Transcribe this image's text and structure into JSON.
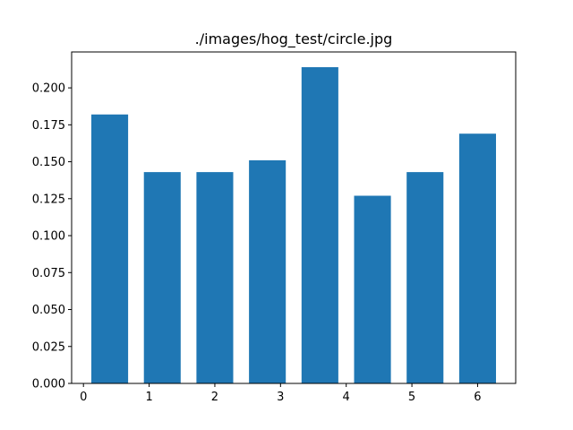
{
  "chart_data": {
    "type": "bar",
    "title": "./images/hog_test/circle.jpg",
    "xlabel": "",
    "ylabel": "",
    "x": [
      0.4,
      1.2,
      2.0,
      2.8,
      3.6,
      4.4,
      5.2,
      6.0
    ],
    "values": [
      0.182,
      0.143,
      0.143,
      0.151,
      0.214,
      0.127,
      0.143,
      0.169
    ],
    "bar_width": 0.56,
    "xlim": [
      -0.18,
      6.58
    ],
    "ylim": [
      0,
      0.2243
    ],
    "xticks": [
      0,
      1,
      2,
      3,
      4,
      5,
      6
    ],
    "xtick_labels": [
      "0",
      "1",
      "2",
      "3",
      "4",
      "5",
      "6"
    ],
    "yticks": [
      0.0,
      0.025,
      0.05,
      0.075,
      0.1,
      0.125,
      0.15,
      0.175,
      0.2
    ],
    "ytick_labels": [
      "0.000",
      "0.025",
      "0.050",
      "0.075",
      "0.100",
      "0.125",
      "0.150",
      "0.175",
      "0.200"
    ],
    "grid": false,
    "legend": "none",
    "bar_color": "#1f77b4"
  }
}
